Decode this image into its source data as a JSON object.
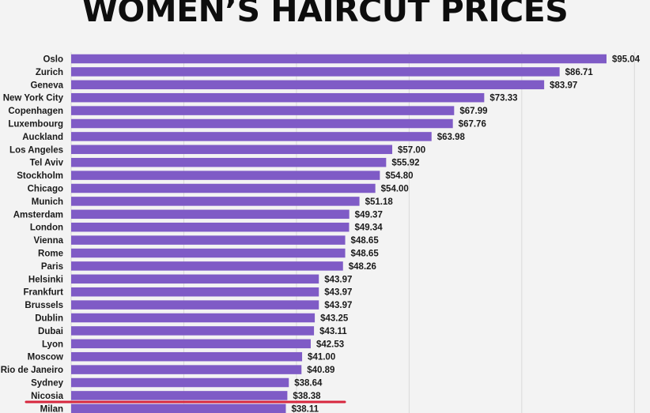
{
  "chart_data": {
    "type": "bar",
    "orientation": "horizontal",
    "title": "WOMEN’S HAIRCUT PRICES",
    "categories": [
      "Oslo",
      "Zurich",
      "Geneva",
      "New York City",
      "Copenhagen",
      "Luxembourg",
      "Auckland",
      "Los Angeles",
      "Tel Aviv",
      "Stockholm",
      "Chicago",
      "Munich",
      "Amsterdam",
      "London",
      "Vienna",
      "Rome",
      "Paris",
      "Helsinki",
      "Frankfurt",
      "Brussels",
      "Dublin",
      "Dubai",
      "Lyon",
      "Moscow",
      "Rio de Janeiro",
      "Sydney",
      "Nicosia",
      "Milan"
    ],
    "values": [
      95.04,
      86.71,
      83.97,
      73.33,
      67.99,
      67.76,
      63.98,
      57.0,
      55.92,
      54.8,
      54.0,
      51.18,
      49.37,
      49.34,
      48.65,
      48.65,
      48.26,
      43.97,
      43.97,
      43.97,
      43.25,
      43.11,
      42.53,
      41.0,
      40.89,
      38.64,
      38.38,
      38.11
    ],
    "value_labels": [
      "$95.04",
      "$86.71",
      "$83.97",
      "$73.33",
      "$67.99",
      "$67.76",
      "$63.98",
      "$57.00",
      "$55.92",
      "$54.80",
      "$54.00",
      "$51.18",
      "$49.37",
      "$49.34",
      "$48.65",
      "$48.65",
      "$48.26",
      "$43.97",
      "$43.97",
      "$43.97",
      "$43.25",
      "$43.11",
      "$42.53",
      "$41.00",
      "$40.89",
      "$38.64",
      "$38.38",
      "$38.11"
    ],
    "xlim": [
      0,
      100
    ],
    "grid": true,
    "bar_color": "#7f5bc6",
    "highlight_line_color": "#d7263d"
  }
}
